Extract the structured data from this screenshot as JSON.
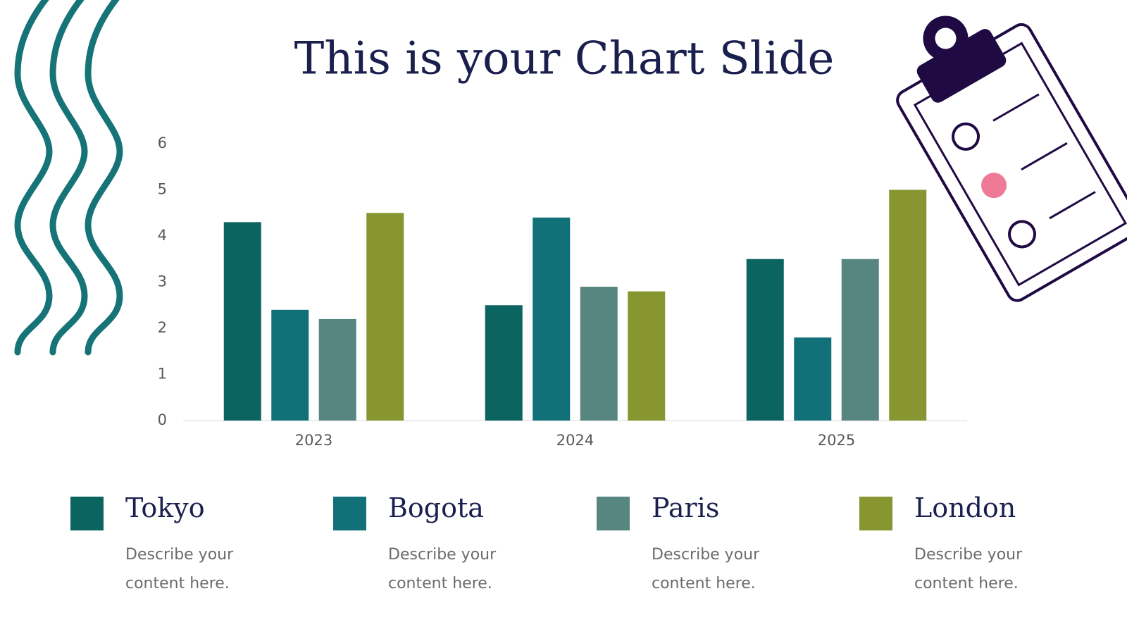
{
  "chart_data": {
    "type": "bar",
    "title": "This is your Chart Slide",
    "categories": [
      "2023",
      "2024",
      "2025"
    ],
    "series": [
      {
        "name": "Tokyo",
        "color": "#0c6461",
        "values": [
          4.3,
          2.5,
          3.5
        ],
        "description": "Describe your content here."
      },
      {
        "name": "Bogota",
        "color": "#127078",
        "values": [
          2.4,
          4.4,
          1.8
        ],
        "description": "Describe your content here."
      },
      {
        "name": "Paris",
        "color": "#578580",
        "values": [
          2.2,
          2.9,
          3.5
        ],
        "description": "Describe your content here."
      },
      {
        "name": "London",
        "color": "#879630",
        "values": [
          4.5,
          2.8,
          5.0
        ],
        "description": "Describe your content here."
      }
    ],
    "ylim": [
      0,
      6
    ],
    "yticks": [
      0,
      1,
      2,
      3,
      4,
      5,
      6
    ],
    "grid": false
  }
}
